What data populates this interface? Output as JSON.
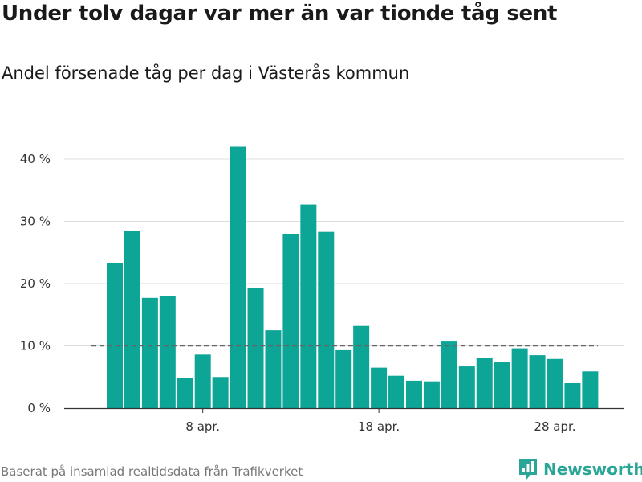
{
  "chart_data": {
    "type": "bar",
    "title": "Under tolv dagar var mer än var tionde tåg sent",
    "subtitle": "Andel försenade tåg per dag i Västerås kommun",
    "categories": [
      "3 apr.",
      "4 apr.",
      "5 apr.",
      "6 apr.",
      "7 apr.",
      "8 apr.",
      "9 apr.",
      "10 apr.",
      "11 apr.",
      "12 apr.",
      "13 apr.",
      "14 apr.",
      "15 apr.",
      "16 apr.",
      "17 apr.",
      "18 apr.",
      "19 apr.",
      "20 apr.",
      "21 apr.",
      "22 apr.",
      "23 apr.",
      "24 apr.",
      "25 apr.",
      "26 apr.",
      "27 apr.",
      "28 apr.",
      "29 apr.",
      "30 apr."
    ],
    "values": [
      23.3,
      28.5,
      17.7,
      18.0,
      4.9,
      8.6,
      5.0,
      42.0,
      19.3,
      12.5,
      28.0,
      32.7,
      28.3,
      9.3,
      13.2,
      6.5,
      5.2,
      4.4,
      4.3,
      10.7,
      6.7,
      8.0,
      7.4,
      9.6,
      8.5,
      7.9,
      4.0,
      5.9
    ],
    "yticks": [
      0,
      10,
      20,
      30,
      40
    ],
    "ytick_labels": [
      "0 %",
      "10 %",
      "20 %",
      "30 %",
      "40 %"
    ],
    "xticks": [
      {
        "index": 5,
        "label": "8 apr."
      },
      {
        "index": 15,
        "label": "18 apr."
      },
      {
        "index": 25,
        "label": "28 apr."
      }
    ],
    "ylim": [
      0,
      44
    ],
    "reference_line": 10,
    "xlabel": "",
    "ylabel": "",
    "bar_color": "#0da596",
    "reference_color": "#666666",
    "grid": true
  },
  "footer": {
    "source": "Baserat på insamlad realtidsdata från Trafikverket",
    "brand": "Newsworthy"
  },
  "colors": {
    "brand": "#2aa597"
  }
}
